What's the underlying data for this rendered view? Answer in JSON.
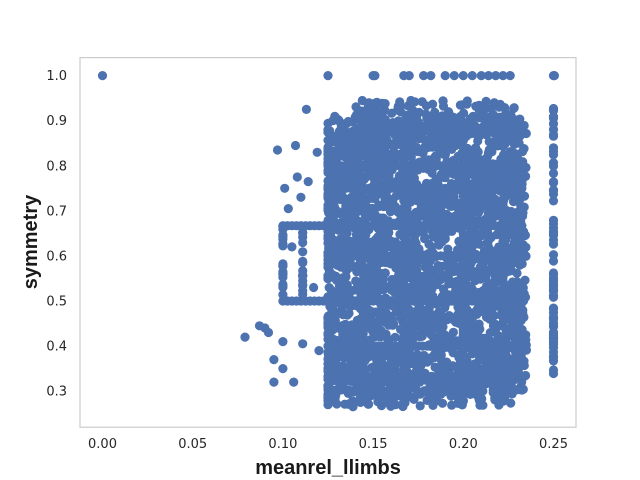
{
  "chart_data": {
    "type": "scatter",
    "title": "",
    "xlabel": "meanrel_llimbs",
    "ylabel": "symmetry",
    "xlim": [
      -0.0125,
      0.2625
    ],
    "ylim": [
      0.22,
      1.04
    ],
    "xticks": [
      0.0,
      0.05,
      0.1,
      0.15,
      0.2,
      0.25
    ],
    "xtick_labels": [
      "0.00",
      "0.05",
      "0.10",
      "0.15",
      "0.20",
      "0.25"
    ],
    "yticks": [
      0.3,
      0.4,
      0.5,
      0.6,
      0.7,
      0.8,
      0.9,
      1.0
    ],
    "ytick_labels": [
      "0.3",
      "0.4",
      "0.5",
      "0.6",
      "0.7",
      "0.8",
      "0.9",
      "1.0"
    ],
    "grid": false,
    "marker_color": "#4c72b0",
    "points_outliers": [
      [
        0.0,
        1.0
      ],
      [
        0.079,
        0.42
      ],
      [
        0.087,
        0.445
      ],
      [
        0.09,
        0.44
      ],
      [
        0.092,
        0.43
      ],
      [
        0.095,
        0.37
      ],
      [
        0.095,
        0.32
      ],
      [
        0.097,
        0.835
      ],
      [
        0.1,
        0.665
      ],
      [
        0.1,
        0.56
      ],
      [
        0.1,
        0.41
      ],
      [
        0.1,
        0.35
      ],
      [
        0.101,
        0.75
      ],
      [
        0.103,
        0.705
      ],
      [
        0.105,
        0.62
      ],
      [
        0.106,
        0.32
      ],
      [
        0.107,
        0.845
      ],
      [
        0.108,
        0.775
      ],
      [
        0.11,
        0.73
      ],
      [
        0.111,
        0.405
      ],
      [
        0.113,
        0.925
      ],
      [
        0.114,
        0.765
      ],
      [
        0.117,
        0.53
      ],
      [
        0.119,
        0.83
      ],
      [
        0.12,
        0.39
      ],
      [
        0.125,
        0.88
      ],
      [
        0.125,
        0.785
      ],
      [
        0.125,
        0.27
      ]
    ],
    "dense_region": {
      "x_range": [
        0.125,
        0.235
      ],
      "y_range": [
        0.265,
        0.945
      ],
      "note": "thousands of overlapping points"
    },
    "vertical_lines_x": [
      0.1,
      0.111,
      0.125,
      0.143,
      0.167,
      0.2,
      0.222,
      0.25
    ],
    "horizontal_lines_y": [
      0.333,
      0.4,
      0.5,
      0.6,
      0.667,
      0.75,
      0.8,
      1.0
    ]
  }
}
